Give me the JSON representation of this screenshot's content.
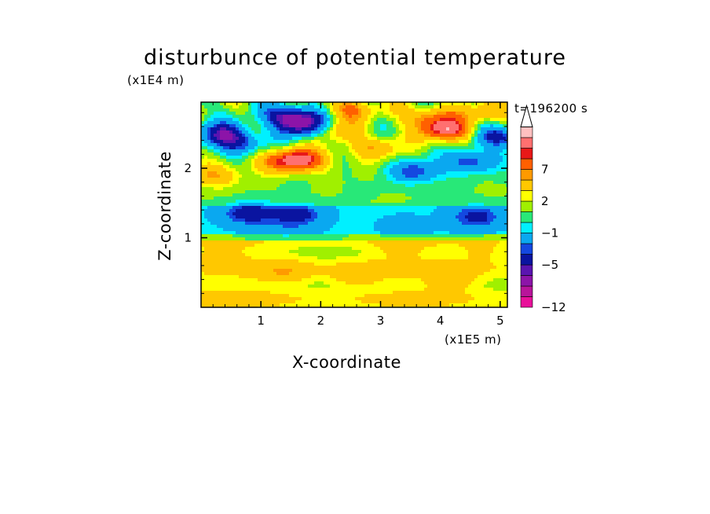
{
  "chart_data": {
    "type": "heatmap",
    "title": "disturbunce of potential temperature",
    "xlabel": "X-coordinate",
    "ylabel": "Z-coordinate",
    "x_scale_label": "(x1E5 m)",
    "y_scale_label": "(x1E4 m)",
    "annotation": "t=196200 s",
    "xlim": [
      0,
      5.12
    ],
    "ylim": [
      0,
      2.95
    ],
    "x_ticks": [
      {
        "value": 1,
        "label": "1"
      },
      {
        "value": 2,
        "label": "2"
      },
      {
        "value": 3,
        "label": "3"
      },
      {
        "value": 4,
        "label": "4"
      },
      {
        "value": 5,
        "label": "5"
      }
    ],
    "y_ticks": [
      {
        "value": 1,
        "label": "1"
      },
      {
        "value": 2,
        "label": "2"
      }
    ],
    "colorbar": {
      "placement": "right",
      "levels": [
        -12,
        -10,
        -8,
        -7,
        -5,
        -4,
        -2,
        -1,
        0,
        1,
        2,
        4,
        5,
        7,
        8,
        10
      ],
      "colors": [
        "#e8109a",
        "#b8149a",
        "#8c14a8",
        "#5a14b0",
        "#0a14a0",
        "#1448e0",
        "#0aa8f0",
        "#00f0ff",
        "#28e878",
        "#a0f000",
        "#ffff00",
        "#ffc800",
        "#ff9a00",
        "#ff6000",
        "#e81818",
        "#ff7070",
        "#ffc0c0"
      ],
      "labels": [
        {
          "value": -12,
          "label": "−12"
        },
        {
          "value": -5,
          "label": "−5"
        },
        {
          "value": -1,
          "label": "−1"
        },
        {
          "value": 2,
          "label": "2"
        },
        {
          "value": 7,
          "label": "7"
        }
      ]
    },
    "field_features": [
      {
        "x": 0.35,
        "z": 0.05,
        "amp": 1.6
      },
      {
        "x": 1.4,
        "z": 0.5,
        "amp": 2.2
      },
      {
        "x": 2.6,
        "z": 0.45,
        "amp": 2.4
      },
      {
        "x": 4.2,
        "z": 0.4,
        "amp": 2.2
      },
      {
        "x": 0.3,
        "z": 0.75,
        "amp": 1.5
      },
      {
        "x": 3.3,
        "z": 0.85,
        "amp": 1.3
      },
      {
        "x": 4.7,
        "z": 0.8,
        "amp": 1.6
      },
      {
        "x": 1.4,
        "z": 1.1,
        "amp": -1.1
      },
      {
        "x": 3.4,
        "z": 1.15,
        "amp": -1.0
      },
      {
        "x": 0.8,
        "z": 1.35,
        "amp": -4.6
      },
      {
        "x": 1.6,
        "z": 1.33,
        "amp": -4.2
      },
      {
        "x": 4.6,
        "z": 1.3,
        "amp": -4.0
      },
      {
        "x": 1.3,
        "z": 2.1,
        "amp": 4.5
      },
      {
        "x": 1.7,
        "z": 2.12,
        "amp": 7.5
      },
      {
        "x": 0.2,
        "z": 1.9,
        "amp": 4.2
      },
      {
        "x": 2.9,
        "z": 2.3,
        "amp": 4.0
      },
      {
        "x": 3.6,
        "z": 1.95,
        "amp": -5.0
      },
      {
        "x": 4.5,
        "z": 2.1,
        "amp": -5.2
      },
      {
        "x": 2.2,
        "z": 2.55,
        "amp": 3.8
      },
      {
        "x": 4.1,
        "z": 2.55,
        "amp": 9.0
      },
      {
        "x": 3.8,
        "z": 2.75,
        "amp": 5.0
      },
      {
        "x": 1.5,
        "z": 2.75,
        "amp": -8.0
      },
      {
        "x": 1.75,
        "z": 2.6,
        "amp": -7.0
      },
      {
        "x": 0.4,
        "z": 2.5,
        "amp": -6.0
      },
      {
        "x": 0.6,
        "z": 2.35,
        "amp": -4.5
      },
      {
        "x": 5.0,
        "z": 2.45,
        "amp": -6.0
      },
      {
        "x": 2.5,
        "z": 2.85,
        "amp": 5.0
      },
      {
        "x": 4.8,
        "z": 2.8,
        "amp": 4.0
      }
    ]
  }
}
